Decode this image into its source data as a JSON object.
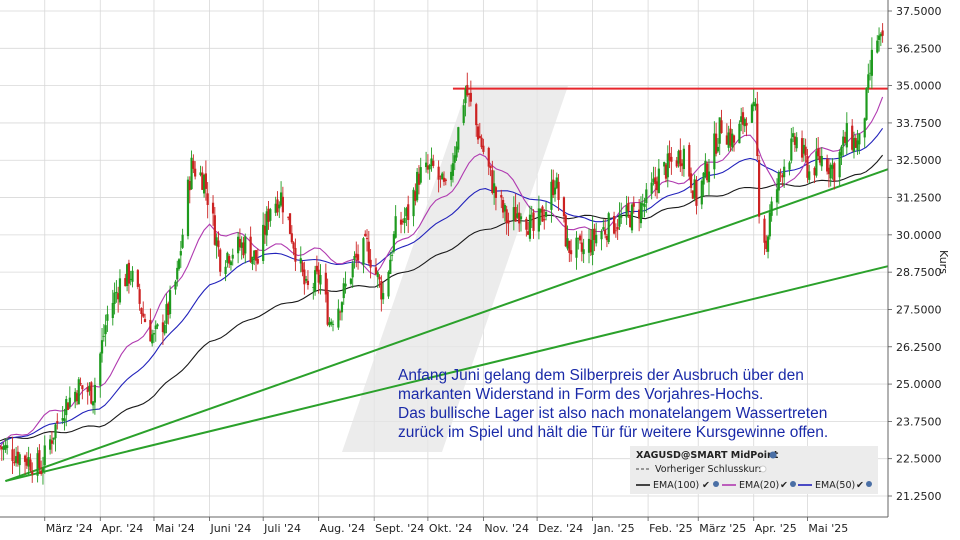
{
  "chart_data": {
    "type": "candlestick",
    "instrument": "XAGUSD@SMART MidPoint",
    "ylabel": "Kurs",
    "ylim": [
      20.75,
      37.75
    ],
    "y_ticks": [
      "37.5000",
      "36.2500",
      "35.0000",
      "33.7500",
      "32.5000",
      "31.2500",
      "30.0000",
      "28.7500",
      "27.5000",
      "26.2500",
      "25.0000",
      "23.7500",
      "22.5000",
      "21.2500"
    ],
    "x_ticks": [
      "März '24",
      "Apr. '24",
      "Mai '24",
      "Juni '24",
      "Juli '24",
      "Aug. '24",
      "Sept. '24",
      "Okt. '24",
      "Nov. '24",
      "Dez. '24",
      "Jan. '25",
      "Feb. '25",
      "März '25",
      "Apr. '25",
      "Mai '25"
    ],
    "x_range": [
      "2024-02-05",
      "2025-06-15"
    ],
    "grid": true,
    "legend_position": "bottom-right",
    "legend": {
      "title": "XAGUSD@SMART MidPoint",
      "prev_close": "Vorheriger Schlusskurs",
      "ema100": "EMA(100)",
      "ema20": "EMA(20)",
      "ema50": "EMA(50)"
    },
    "annotation_lines": [
      "Anfang Juni gelang dem Silberpreis der Ausbruch über den",
      "markanten Widerstand in Form des Vorjahres-Hochs.",
      "Das bullische Lager ist also nach monatelangem Wassertreten",
      "zurück im Spiel und hält die Tür für weitere Kursgewinne offen."
    ],
    "price_path": [
      [
        "2024-02-05",
        22.9
      ],
      [
        "2024-02-20",
        22.5
      ],
      [
        "2024-02-28",
        22.2
      ],
      [
        "2024-03-04",
        23.1
      ],
      [
        "2024-03-11",
        24.2
      ],
      [
        "2024-03-20",
        24.9
      ],
      [
        "2024-03-28",
        24.7
      ],
      [
        "2024-04-05",
        27.3
      ],
      [
        "2024-04-12",
        28.4
      ],
      [
        "2024-04-18",
        28.7
      ],
      [
        "2024-04-25",
        27.3
      ],
      [
        "2024-05-01",
        26.5
      ],
      [
        "2024-05-08",
        27.3
      ],
      [
        "2024-05-14",
        28.6
      ],
      [
        "2024-05-20",
        31.5
      ],
      [
        "2024-05-22",
        32.3
      ],
      [
        "2024-05-29",
        31.9
      ],
      [
        "2024-06-07",
        29.2
      ],
      [
        "2024-06-14",
        29.5
      ],
      [
        "2024-06-21",
        29.7
      ],
      [
        "2024-06-28",
        29.1
      ],
      [
        "2024-07-05",
        31.0
      ],
      [
        "2024-07-11",
        31.3
      ],
      [
        "2024-07-17",
        30.0
      ],
      [
        "2024-07-25",
        28.1
      ],
      [
        "2024-08-02",
        28.6
      ],
      [
        "2024-08-07",
        27.1
      ],
      [
        "2024-08-14",
        27.9
      ],
      [
        "2024-08-21",
        29.1
      ],
      [
        "2024-08-28",
        29.6
      ],
      [
        "2024-09-06",
        28.0
      ],
      [
        "2024-09-13",
        30.2
      ],
      [
        "2024-09-20",
        30.7
      ],
      [
        "2024-09-26",
        32.0
      ],
      [
        "2024-10-04",
        32.2
      ],
      [
        "2024-10-11",
        31.4
      ],
      [
        "2024-10-18",
        33.5
      ],
      [
        "2024-10-22",
        34.9
      ],
      [
        "2024-10-25",
        34.3
      ],
      [
        "2024-11-01",
        32.8
      ],
      [
        "2024-11-08",
        31.3
      ],
      [
        "2024-11-15",
        30.4
      ],
      [
        "2024-11-22",
        30.9
      ],
      [
        "2024-11-29",
        30.1
      ],
      [
        "2024-12-06",
        30.9
      ],
      [
        "2024-12-11",
        31.9
      ],
      [
        "2024-12-18",
        29.6
      ],
      [
        "2024-12-27",
        29.4
      ],
      [
        "2025-01-03",
        30.0
      ],
      [
        "2025-01-10",
        30.3
      ],
      [
        "2025-01-17",
        30.5
      ],
      [
        "2025-01-24",
        30.7
      ],
      [
        "2025-01-31",
        31.1
      ],
      [
        "2025-02-07",
        32.0
      ],
      [
        "2025-02-14",
        32.4
      ],
      [
        "2025-02-21",
        32.8
      ],
      [
        "2025-02-28",
        31.2
      ],
      [
        "2025-03-07",
        32.4
      ],
      [
        "2025-03-14",
        33.7
      ],
      [
        "2025-03-21",
        33.1
      ],
      [
        "2025-03-28",
        34.1
      ],
      [
        "2025-04-02",
        34.0
      ],
      [
        "2025-04-04",
        31.0
      ],
      [
        "2025-04-08",
        29.6
      ],
      [
        "2025-04-10",
        30.6
      ],
      [
        "2025-04-17",
        32.3
      ],
      [
        "2025-04-25",
        33.2
      ],
      [
        "2025-05-02",
        32.1
      ],
      [
        "2025-05-09",
        32.6
      ],
      [
        "2025-05-16",
        32.2
      ],
      [
        "2025-05-23",
        33.3
      ],
      [
        "2025-05-30",
        33.0
      ],
      [
        "2025-06-03",
        34.5
      ],
      [
        "2025-06-06",
        35.9
      ],
      [
        "2025-06-09",
        36.6
      ],
      [
        "2025-06-12",
        36.3
      ]
    ],
    "ema100": [
      [
        "2024-02-05",
        23.1
      ],
      [
        "2024-04-01",
        23.6
      ],
      [
        "2024-05-01",
        24.6
      ],
      [
        "2024-06-01",
        26.4
      ],
      [
        "2024-07-01",
        27.4
      ],
      [
        "2024-08-01",
        28.1
      ],
      [
        "2024-09-01",
        28.3
      ],
      [
        "2024-10-01",
        29.1
      ],
      [
        "2024-11-01",
        30.2
      ],
      [
        "2024-12-01",
        30.6
      ],
      [
        "2025-01-01",
        30.6
      ],
      [
        "2025-02-01",
        30.6
      ],
      [
        "2025-03-01",
        31.2
      ],
      [
        "2025-04-01",
        31.6
      ],
      [
        "2025-05-01",
        31.7
      ],
      [
        "2025-06-01",
        32.0
      ],
      [
        "2025-06-12",
        32.7
      ]
    ],
    "ema50": [
      [
        "2024-02-05",
        23.0
      ],
      [
        "2024-04-01",
        24.2
      ],
      [
        "2024-05-01",
        26.0
      ],
      [
        "2024-06-01",
        28.3
      ],
      [
        "2024-07-01",
        29.4
      ],
      [
        "2024-08-01",
        29.1
      ],
      [
        "2024-09-01",
        29.0
      ],
      [
        "2024-10-01",
        30.1
      ],
      [
        "2024-11-01",
        31.6
      ],
      [
        "2024-12-01",
        31.2
      ],
      [
        "2025-01-01",
        30.4
      ],
      [
        "2025-02-01",
        30.9
      ],
      [
        "2025-03-01",
        31.8
      ],
      [
        "2025-04-01",
        32.6
      ],
      [
        "2025-04-15",
        32.0
      ],
      [
        "2025-05-01",
        32.4
      ],
      [
        "2025-06-01",
        32.8
      ],
      [
        "2025-06-12",
        33.6
      ]
    ],
    "ema20": [
      [
        "2024-02-05",
        22.9
      ],
      [
        "2024-04-01",
        25.0
      ],
      [
        "2024-05-01",
        27.2
      ],
      [
        "2024-06-01",
        30.3
      ],
      [
        "2024-07-01",
        29.6
      ],
      [
        "2024-08-01",
        29.4
      ],
      [
        "2024-09-01",
        28.8
      ],
      [
        "2024-10-01",
        30.7
      ],
      [
        "2024-11-01",
        32.8
      ],
      [
        "2024-12-01",
        30.8
      ],
      [
        "2025-01-01",
        30.0
      ],
      [
        "2025-02-01",
        31.4
      ],
      [
        "2025-03-01",
        32.1
      ],
      [
        "2025-04-01",
        33.4
      ],
      [
        "2025-04-15",
        31.3
      ],
      [
        "2025-05-01",
        32.6
      ],
      [
        "2025-06-01",
        33.3
      ],
      [
        "2025-06-12",
        34.7
      ]
    ],
    "resistance": {
      "value": 34.9,
      "from": "2024-10-15",
      "to": "2025-06-15",
      "color": "#e8262c"
    },
    "support_lines": [
      {
        "from": [
          "2024-02-08",
          21.75
        ],
        "to": [
          "2025-06-15",
          32.2
        ],
        "color": "#2ba12b"
      },
      {
        "from": [
          "2024-02-08",
          21.75
        ],
        "to": [
          "2025-06-15",
          28.95
        ],
        "color": "#2ba12b"
      }
    ],
    "colors": {
      "up": "#1e9a1e",
      "down": "#cc2222",
      "ema100": "#1a1a1a",
      "ema50": "#2222bb",
      "ema20": "#b03ab0",
      "grid": "#d8d8d8",
      "annotation": "#1a2aa8",
      "legend_bg": "#ececec"
    }
  }
}
